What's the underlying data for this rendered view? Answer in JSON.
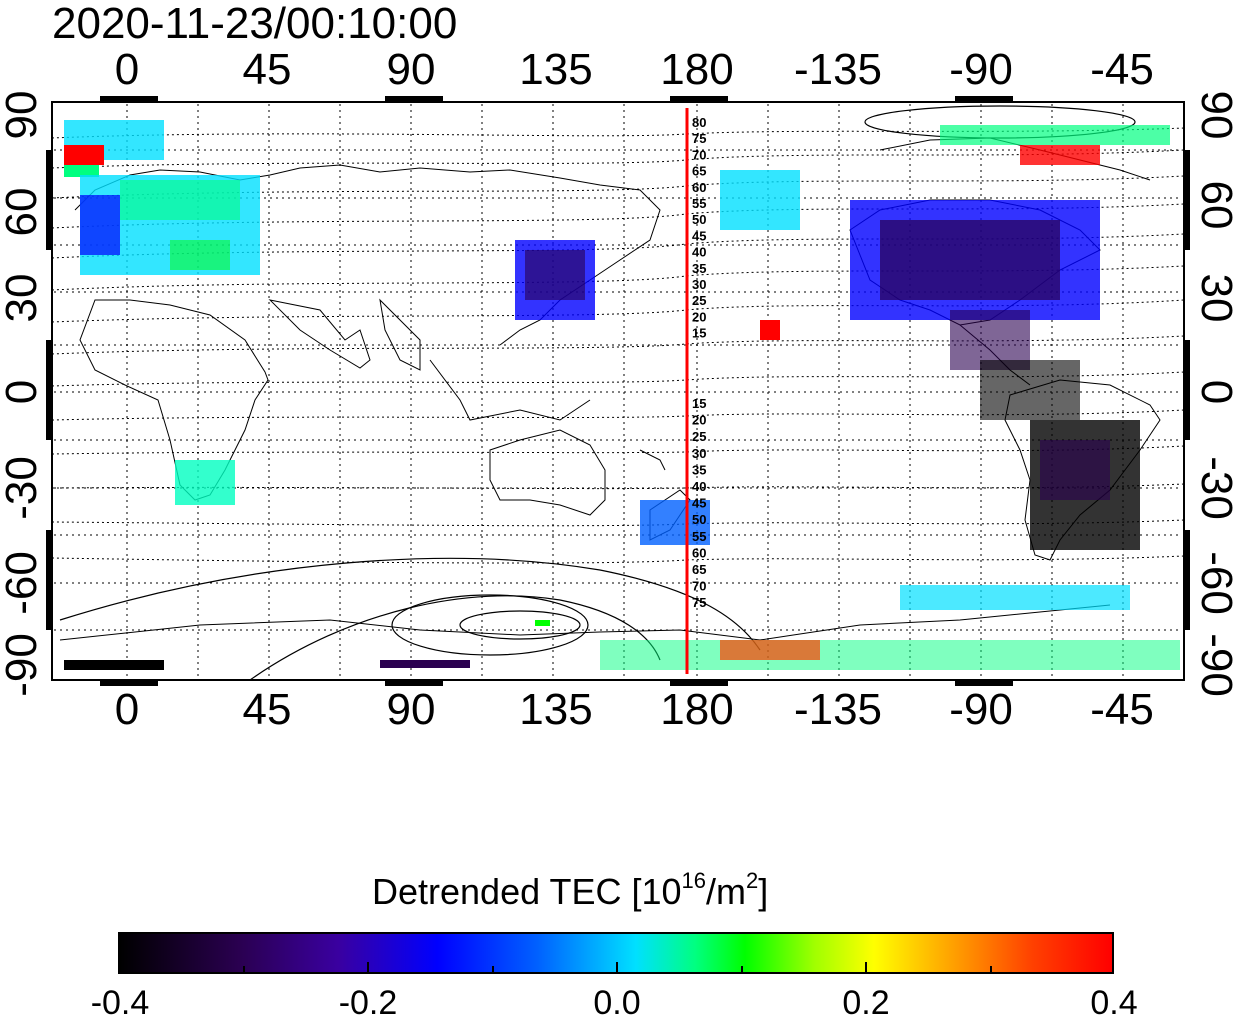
{
  "timestamp": "2020-11-23/00:10:00",
  "map": {
    "lon_ticks_top": [
      "0",
      "45",
      "90",
      "135",
      "180",
      "-135",
      "-90",
      "-45"
    ],
    "lon_ticks_bottom": [
      "0",
      "45",
      "90",
      "135",
      "180",
      "-135",
      "-90",
      "-45"
    ],
    "lat_ticks_left": [
      "90",
      "60",
      "30",
      "0",
      "-30",
      "-60",
      "-90"
    ],
    "lat_ticks_right": [
      "90",
      "60",
      "30",
      "0",
      "-30",
      "-60",
      "-90"
    ],
    "terminator_line_color": "#ff0000",
    "contour_labels_north": [
      "80",
      "75",
      "70",
      "65",
      "60",
      "55",
      "50",
      "45",
      "40",
      "35",
      "30",
      "25",
      "20",
      "15"
    ],
    "contour_labels_south": [
      "15",
      "20",
      "25",
      "30",
      "35",
      "40",
      "45",
      "50",
      "55",
      "60",
      "65",
      "70",
      "75"
    ]
  },
  "colorbar": {
    "title_main": "Detrended TEC  [10",
    "title_exp1": "16",
    "title_mid": "/m",
    "title_exp2": "2",
    "title_end": "]",
    "tick_labels": [
      "-0.4",
      "-0.2",
      "0.0",
      "0.2",
      "0.4"
    ],
    "range": [
      -0.4,
      0.4
    ],
    "colors": [
      "#000000",
      "#3a00a0",
      "#0000ff",
      "#00e0ff",
      "#00ff00",
      "#ffff00",
      "#ff0000"
    ]
  }
}
